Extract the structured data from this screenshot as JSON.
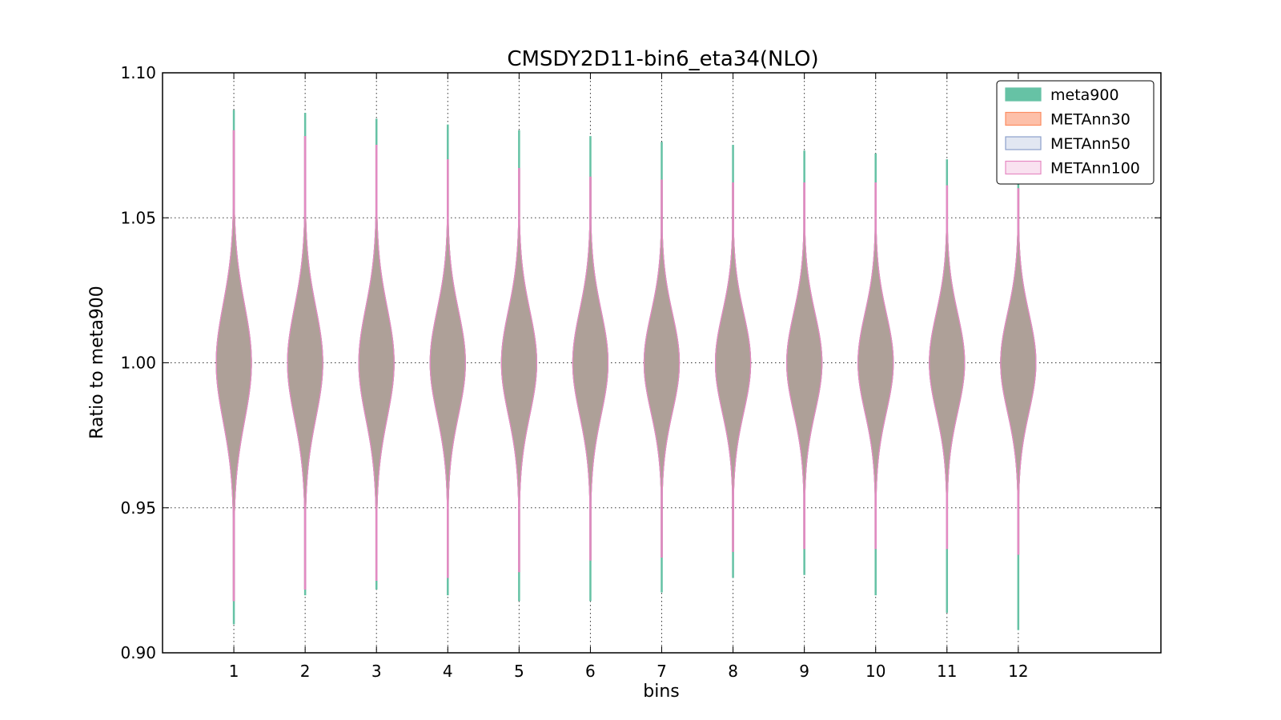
{
  "chart_data": {
    "type": "violin",
    "title": "CMSDY2D11-bin6_eta34(NLO)",
    "xlabel": "bins",
    "ylabel": "Ratio to meta900",
    "categories": [
      "1",
      "2",
      "3",
      "4",
      "5",
      "6",
      "7",
      "8",
      "9",
      "10",
      "11",
      "12"
    ],
    "xlim": [
      0,
      14
    ],
    "ylim": [
      0.9,
      1.1
    ],
    "yticks": [
      "0.90",
      "0.95",
      "1.00",
      "1.05",
      "1.10"
    ],
    "grid": true,
    "legend_position": "top-right",
    "series": [
      {
        "name": "meta900",
        "color": "#66c2a5",
        "center": [
          1.0,
          1.0,
          1.0,
          1.0,
          1.0,
          1.0,
          1.0,
          1.0,
          1.0,
          1.0,
          1.0,
          1.0
        ],
        "min": [
          0.91,
          0.92,
          0.922,
          0.92,
          0.918,
          0.918,
          0.921,
          0.926,
          0.927,
          0.92,
          0.914,
          0.908
        ],
        "max": [
          1.087,
          1.086,
          1.084,
          1.082,
          1.08,
          1.078,
          1.076,
          1.075,
          1.073,
          1.072,
          1.07,
          1.066
        ],
        "spread": [
          0.02,
          0.019,
          0.019,
          0.018,
          0.018,
          0.018,
          0.017,
          0.017,
          0.017,
          0.017,
          0.017,
          0.017
        ]
      },
      {
        "name": "METAnn30",
        "color": "#fc8d62",
        "center": [
          1.0,
          1.0,
          1.0,
          1.0,
          1.0,
          1.0,
          1.0,
          1.0,
          1.0,
          1.0,
          1.0,
          1.0
        ],
        "min": [
          0.918,
          0.922,
          0.925,
          0.926,
          0.928,
          0.932,
          0.933,
          0.935,
          0.936,
          0.936,
          0.936,
          0.934
        ],
        "max": [
          1.08,
          1.078,
          1.075,
          1.07,
          1.067,
          1.064,
          1.063,
          1.062,
          1.062,
          1.062,
          1.061,
          1.06
        ],
        "spread": [
          0.02,
          0.019,
          0.019,
          0.018,
          0.018,
          0.018,
          0.017,
          0.017,
          0.017,
          0.017,
          0.017,
          0.017
        ]
      },
      {
        "name": "METAnn50",
        "color": "#8da0cb",
        "center": [
          1.0,
          1.0,
          1.0,
          1.0,
          1.0,
          1.0,
          1.0,
          1.0,
          1.0,
          1.0,
          1.0,
          1.0
        ],
        "min": [
          0.918,
          0.922,
          0.925,
          0.926,
          0.928,
          0.932,
          0.933,
          0.935,
          0.936,
          0.936,
          0.936,
          0.934
        ],
        "max": [
          1.08,
          1.078,
          1.075,
          1.07,
          1.067,
          1.064,
          1.063,
          1.062,
          1.062,
          1.062,
          1.061,
          1.06
        ],
        "spread": [
          0.02,
          0.019,
          0.019,
          0.018,
          0.018,
          0.018,
          0.017,
          0.017,
          0.017,
          0.017,
          0.017,
          0.017
        ]
      },
      {
        "name": "METAnn100",
        "color": "#e78ac3",
        "center": [
          1.0,
          1.0,
          1.0,
          1.0,
          1.0,
          1.0,
          1.0,
          1.0,
          1.0,
          1.0,
          1.0,
          1.0
        ],
        "min": [
          0.918,
          0.922,
          0.925,
          0.926,
          0.928,
          0.932,
          0.933,
          0.935,
          0.936,
          0.936,
          0.936,
          0.934
        ],
        "max": [
          1.08,
          1.078,
          1.075,
          1.07,
          1.067,
          1.064,
          1.063,
          1.062,
          1.062,
          1.062,
          1.061,
          1.06
        ],
        "spread": [
          0.02,
          0.019,
          0.019,
          0.018,
          0.018,
          0.018,
          0.017,
          0.017,
          0.017,
          0.017,
          0.017,
          0.017
        ]
      }
    ],
    "overlap_fill_color": "#aea098"
  }
}
